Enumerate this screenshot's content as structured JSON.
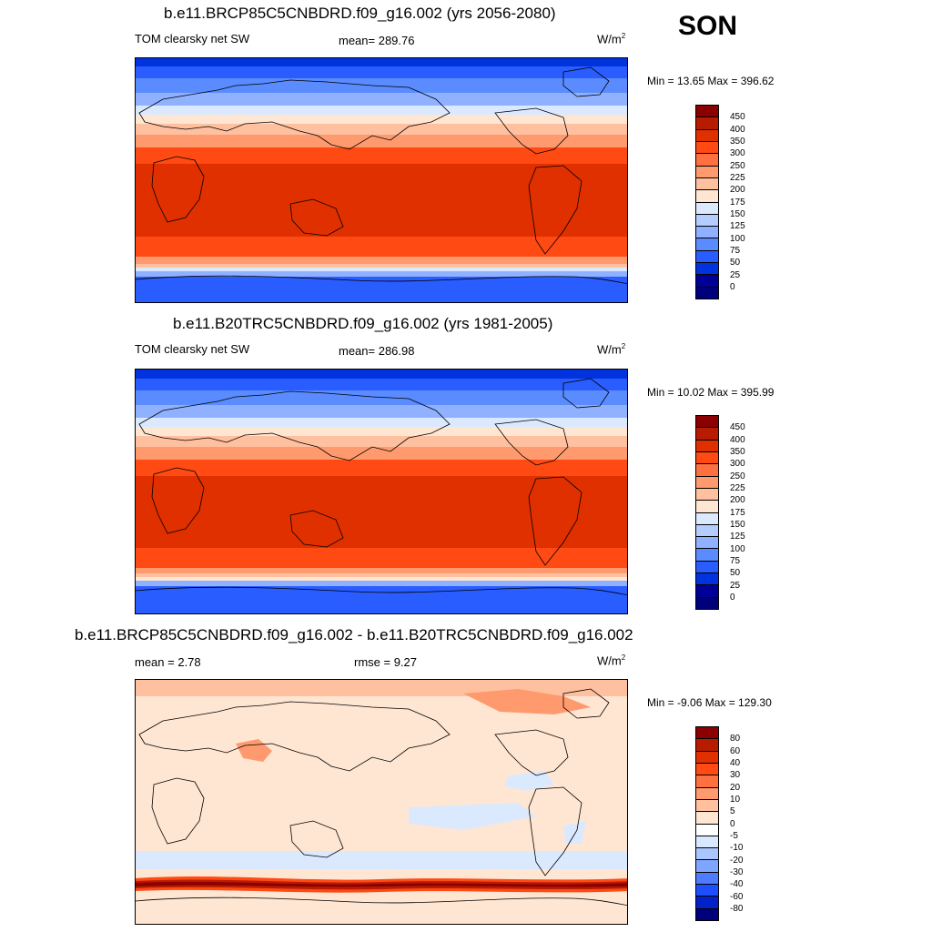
{
  "season": "SON",
  "panels": [
    {
      "title": "b.e11.BRCP85C5CNBDRD.f09_g16.002 (yrs 2056-2080)",
      "left_label": "TOM clearsky net SW",
      "mid_label": "mean= 289.76",
      "units_base": "W/m",
      "units_sup": "2",
      "minmax": "Min =  13.65 Max = 396.62",
      "colorbar_ticks": [
        "450",
        "400",
        "350",
        "300",
        "250",
        "225",
        "200",
        "175",
        "150",
        "125",
        "100",
        "75",
        "50",
        "25",
        "0"
      ]
    },
    {
      "title": "b.e11.B20TRC5CNBDRD.f09_g16.002 (yrs 1981-2005)",
      "left_label": "TOM clearsky net SW",
      "mid_label": "mean= 286.98",
      "units_base": "W/m",
      "units_sup": "2",
      "minmax": "Min =  10.02 Max = 395.99",
      "colorbar_ticks": [
        "450",
        "400",
        "350",
        "300",
        "250",
        "225",
        "200",
        "175",
        "150",
        "125",
        "100",
        "75",
        "50",
        "25",
        "0"
      ]
    },
    {
      "title": "b.e11.BRCP85C5CNBDRD.f09_g16.002 - b.e11.B20TRC5CNBDRD.f09_g16.002",
      "left_label": "mean =   2.78",
      "mid_label": "rmse =   9.27",
      "units_base": "W/m",
      "units_sup": "2",
      "minmax": "Min =  -9.06 Max = 129.30",
      "colorbar_ticks": [
        "80",
        "60",
        "40",
        "30",
        "20",
        "10",
        "5",
        "0",
        "-5",
        "-10",
        "-20",
        "-30",
        "-40",
        "-60",
        "-80"
      ]
    }
  ],
  "colors": {
    "abs_scale": [
      "#8b0000",
      "#b81c00",
      "#e03000",
      "#ff4a14",
      "#ff7040",
      "#ff9a6e",
      "#ffc0a0",
      "#ffe6d2",
      "#dbe9ff",
      "#b4cdff",
      "#8fb1ff",
      "#5a8cff",
      "#2a5dff",
      "#0033dd",
      "#000099",
      "#00007a"
    ],
    "diff_scale": [
      "#8b0000",
      "#b81c00",
      "#e03000",
      "#ff4a14",
      "#ff7040",
      "#ff9a6e",
      "#ffc0a0",
      "#ffe6d2",
      "#ffffff",
      "#d8e8ff",
      "#aac6ff",
      "#7ea6ff",
      "#4f7cff",
      "#1e4fff",
      "#0022c8",
      "#00007a"
    ],
    "land_outline": "#000000"
  }
}
